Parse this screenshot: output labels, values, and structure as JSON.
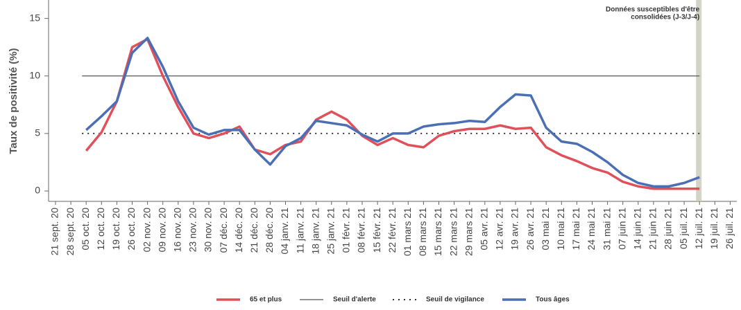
{
  "chart_data": {
    "type": "line",
    "y_label": "Taux de positivité (%)",
    "categories": [
      "21 sept. 20",
      "28 sept. 20",
      "05 oct. 20",
      "12 oct. 20",
      "19 oct. 20",
      "26 oct. 20",
      "02 nov. 20",
      "09 nov. 20",
      "16 nov. 20",
      "23 nov. 20",
      "30 nov. 20",
      "07 déc. 20",
      "14 déc. 20",
      "21 déc. 20",
      "28 déc. 20",
      "04 janv. 21",
      "11 janv. 21",
      "18 janv. 21",
      "25 janv. 21",
      "01 févr. 21",
      "08 févr. 21",
      "15 févr. 21",
      "22 févr. 21",
      "01 mars 21",
      "08 mars 21",
      "15 mars 21",
      "22 mars 21",
      "29 mars 21",
      "05 avr. 21",
      "12 avr. 21",
      "19 avr. 21",
      "26 avr. 21",
      "03 mai 21",
      "10 mai 21",
      "17 mai 21",
      "24 mai 21",
      "31 mai 21",
      "07 juin 21",
      "14 juin 21",
      "21 juin 21",
      "28 juin 21",
      "05 juil. 21",
      "12 juil. 21",
      "19 juil. 21",
      "26 juil. 21"
    ],
    "series": [
      {
        "name": "65 et plus",
        "color": "#e0505a",
        "values": [
          null,
          null,
          3.5,
          5.1,
          7.8,
          12.5,
          13.2,
          10.0,
          7.3,
          5.0,
          4.6,
          5.0,
          5.6,
          3.6,
          3.2,
          4.0,
          4.3,
          6.2,
          6.9,
          6.2,
          4.8,
          4.0,
          4.6,
          4.0,
          3.8,
          4.8,
          5.2,
          5.4,
          5.4,
          5.7,
          5.4,
          5.5,
          3.8,
          3.1,
          2.6,
          2.0,
          1.6,
          0.8,
          0.4,
          0.2,
          0.2,
          0.2,
          0.2,
          null,
          null
        ]
      },
      {
        "name": "Tous âges",
        "color": "#4a6fb5",
        "values": [
          null,
          null,
          5.3,
          6.5,
          7.8,
          12.0,
          13.3,
          10.8,
          7.8,
          5.5,
          4.9,
          5.3,
          5.3,
          3.6,
          2.3,
          3.9,
          4.6,
          6.1,
          5.9,
          5.7,
          4.9,
          4.3,
          5.0,
          5.0,
          5.6,
          5.8,
          5.9,
          6.1,
          6.0,
          7.3,
          8.4,
          8.3,
          5.5,
          4.3,
          4.1,
          3.4,
          2.5,
          1.4,
          0.7,
          0.4,
          0.4,
          0.7,
          1.2,
          null,
          null
        ]
      }
    ],
    "thresholds": [
      {
        "name": "Seuil d'alerte",
        "value": 10,
        "color": "#555555",
        "style": "solid"
      },
      {
        "name": "Seuil de vigilance",
        "value": 5,
        "color": "#333333",
        "style": "dotted"
      }
    ],
    "annotation": [
      "Données susceptibles d'être",
      "consolidées (J-3/J-4)"
    ],
    "ylim": [
      -0.9,
      16.6
    ],
    "yticks": [
      0,
      5,
      10,
      15
    ],
    "grid": false
  }
}
